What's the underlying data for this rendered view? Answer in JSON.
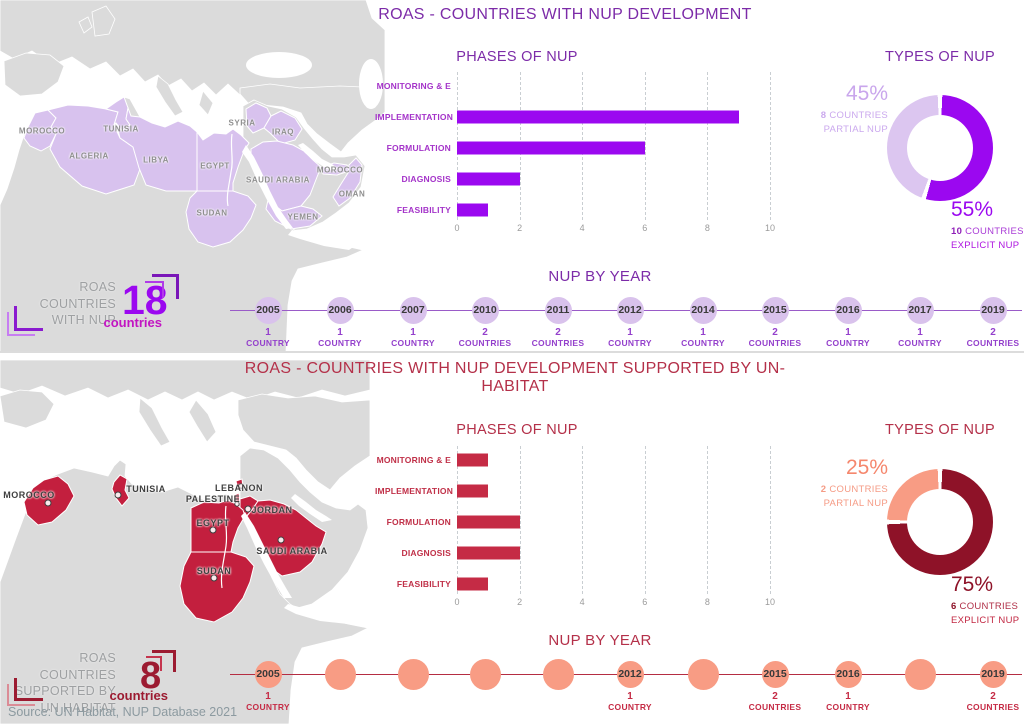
{
  "top_section": {
    "title": "ROAS - COUNTRIES WITH NUP DEVELOPMENT",
    "stat": {
      "label_line1": "ROAS COUNTRIES",
      "label_line2": "WITH NUP",
      "value": "18",
      "unit": "countries"
    },
    "types_notes": {
      "partial_pct": "45%",
      "partial_count": "8",
      "partial_count_word": "COUNTRIES",
      "partial_label": "PARTIAL NUP",
      "explicit_pct": "55%",
      "explicit_count": "10",
      "explicit_count_word": "COUNTRIES",
      "explicit_label": "EXPLICIT NUP"
    },
    "map_labels": [
      "MOROCCO",
      "TUNISIA",
      "ALGERIA",
      "LIBYA",
      "EGYPT",
      "SYRIA",
      "IRAQ",
      "SAUDI ARABIA",
      "MOROCCO",
      "OMAN",
      "SUDAN",
      "YEMEN"
    ]
  },
  "bottom_section": {
    "title": "ROAS - COUNTRIES WITH NUP DEVELOPMENT SUPPORTED BY UN-HABITAT",
    "stat": {
      "label_line1": "ROAS COUNTRIES",
      "label_line2": "SUPPORTED BY",
      "label_line3": "UN HABITAT",
      "value": "8",
      "unit": "countries"
    },
    "types_notes": {
      "partial_pct": "25%",
      "partial_count": "2",
      "partial_count_word": "COUNTRIES",
      "partial_label": "PARTIAL NUP",
      "explicit_pct": "75%",
      "explicit_count": "6",
      "explicit_count_word": "COUNTRIES",
      "explicit_label": "EXPLICIT NUP"
    },
    "map_labels": [
      "MOROCCO",
      "TUNISIA",
      "LEBANON",
      "PALESTINE",
      "JORDAN",
      "EGYPT",
      "SAUDI ARABIA",
      "SUDAN"
    ]
  },
  "source_note": "Source: UN Habitat, NUP Database 2021",
  "chart_data": [
    {
      "id": "phases-of-nup-top",
      "type": "bar",
      "orientation": "horizontal",
      "title": "PHASES OF NUP",
      "categories": [
        "MONITORING & E",
        "IMPLEMENTATION",
        "FORMULATION",
        "DIAGNOSIS",
        "FEASIBILITY"
      ],
      "values": [
        0,
        9,
        6,
        2,
        1
      ],
      "xlim": [
        0,
        10
      ],
      "xticks": [
        "0",
        "2",
        "4",
        "6",
        "8",
        "10"
      ],
      "bar_color": "#9B08F0",
      "grid": "dashed-vertical"
    },
    {
      "id": "types-of-nup-top",
      "type": "pie",
      "donut": true,
      "title": "TYPES OF NUP",
      "slices": [
        {
          "label": "EXPLICIT NUP",
          "pct": 55,
          "countries": 10,
          "color": "#9B08F0"
        },
        {
          "label": "PARTIAL NUP",
          "pct": 45,
          "countries": 8,
          "color": "#DCC6F0"
        }
      ],
      "legend_position": "around"
    },
    {
      "id": "nup-by-year-top",
      "type": "timeline",
      "title": "NUP BY YEAR",
      "items": [
        {
          "year": "2005",
          "count": "1",
          "count_word": "COUNTRY"
        },
        {
          "year": "2006",
          "count": "1",
          "count_word": "COUNTRY"
        },
        {
          "year": "2007",
          "count": "1",
          "count_word": "COUNTRY"
        },
        {
          "year": "2010",
          "count": "2",
          "count_word": "COUNTRIES"
        },
        {
          "year": "2011",
          "count": "2",
          "count_word": "COUNTRIES"
        },
        {
          "year": "2012",
          "count": "1",
          "count_word": "COUNTRY"
        },
        {
          "year": "2014",
          "count": "1",
          "count_word": "COUNTRY"
        },
        {
          "year": "2015",
          "count": "2",
          "count_word": "COUNTRIES"
        },
        {
          "year": "2016",
          "count": "1",
          "count_word": "COUNTRY"
        },
        {
          "year": "2017",
          "count": "1",
          "count_word": "COUNTRY"
        },
        {
          "year": "2019",
          "count": "2",
          "count_word": "COUNTRIES"
        }
      ]
    },
    {
      "id": "phases-of-nup-bottom",
      "type": "bar",
      "orientation": "horizontal",
      "title": "PHASES OF NUP",
      "categories": [
        "MONITORING & E",
        "IMPLEMENTATION",
        "FORMULATION",
        "DIAGNOSIS",
        "FEASIBILITY"
      ],
      "values": [
        1,
        1,
        2,
        2,
        1
      ],
      "xlim": [
        0,
        10
      ],
      "xticks": [
        "0",
        "2",
        "4",
        "6",
        "8",
        "10"
      ],
      "bar_color": "#C52B45",
      "grid": "dashed-vertical"
    },
    {
      "id": "types-of-nup-bottom",
      "type": "pie",
      "donut": true,
      "title": "TYPES OF NUP",
      "slices": [
        {
          "label": "EXPLICIT NUP",
          "pct": 75,
          "countries": 6,
          "color": "#8E1228"
        },
        {
          "label": "PARTIAL NUP",
          "pct": 25,
          "countries": 2,
          "color": "#F89C84"
        }
      ],
      "legend_position": "around"
    },
    {
      "id": "nup-by-year-bottom",
      "type": "timeline",
      "title": "NUP BY YEAR",
      "items": [
        {
          "year": "2005",
          "count": "1",
          "count_word": "COUNTRY"
        },
        {
          "year": "",
          "count": "",
          "count_word": ""
        },
        {
          "year": "",
          "count": "",
          "count_word": ""
        },
        {
          "year": "",
          "count": "",
          "count_word": ""
        },
        {
          "year": "",
          "count": "",
          "count_word": ""
        },
        {
          "year": "2012",
          "count": "1",
          "count_word": "COUNTRY"
        },
        {
          "year": "",
          "count": "",
          "count_word": ""
        },
        {
          "year": "2015",
          "count": "2",
          "count_word": "COUNTRIES"
        },
        {
          "year": "2016",
          "count": "1",
          "count_word": "COUNTRY"
        },
        {
          "year": "",
          "count": "",
          "count_word": ""
        },
        {
          "year": "2019",
          "count": "2",
          "count_word": "COUNTRIES"
        }
      ]
    }
  ]
}
